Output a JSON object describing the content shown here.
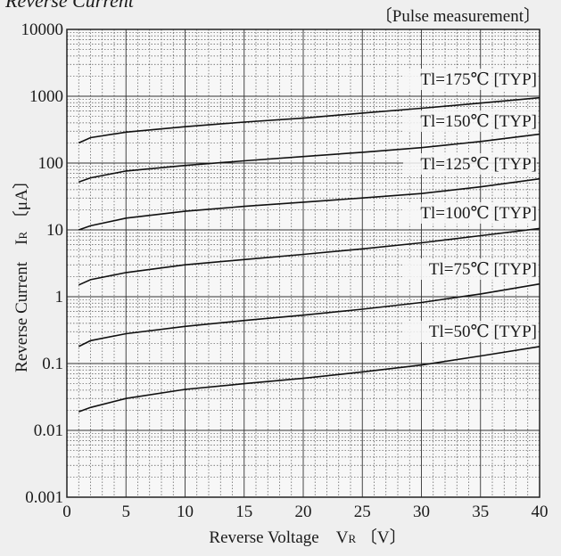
{
  "chart_data": {
    "type": "line",
    "title_fragment": "Reverse Current",
    "note": "〔Pulse measurement〕",
    "xlabel": "Reverse Voltage　V",
    "xlabel_sub": "R",
    "xlabel_unit": "〔V〕",
    "ylabel": "Reverse Current　I",
    "ylabel_sub": "R",
    "ylabel_unit": "〔μA〕",
    "x_scale": "linear",
    "y_scale": "log",
    "xlim": [
      0,
      40
    ],
    "ylim": [
      0.001,
      10000
    ],
    "x_ticks": [
      "0",
      "5",
      "10",
      "15",
      "20",
      "25",
      "30",
      "35",
      "40"
    ],
    "y_ticks": [
      "0.001",
      "0.01",
      "0.1",
      "1",
      "10",
      "100",
      "1000",
      "10000"
    ],
    "grid": true,
    "series": [
      {
        "name": "Tl=175℃ [TYP]",
        "x": [
          1,
          2,
          5,
          10,
          15,
          20,
          25,
          30,
          35,
          40
        ],
        "y": [
          200,
          240,
          290,
          350,
          410,
          470,
          560,
          660,
          790,
          950
        ]
      },
      {
        "name": "Tl=150℃ [TYP]",
        "x": [
          1,
          2,
          5,
          10,
          15,
          20,
          25,
          30,
          35,
          40
        ],
        "y": [
          52,
          60,
          76,
          92,
          108,
          125,
          145,
          170,
          210,
          270
        ]
      },
      {
        "name": "Tl=125℃ [TYP]",
        "x": [
          1,
          2,
          5,
          10,
          15,
          20,
          25,
          30,
          35,
          40
        ],
        "y": [
          10,
          11.5,
          15,
          19,
          22.5,
          26,
          30,
          35,
          44,
          58
        ]
      },
      {
        "name": "Tl=100℃ [TYP]",
        "x": [
          1,
          2,
          5,
          10,
          15,
          20,
          25,
          30,
          35,
          40
        ],
        "y": [
          1.5,
          1.8,
          2.3,
          3.0,
          3.6,
          4.3,
          5.2,
          6.4,
          8.2,
          10.5
        ]
      },
      {
        "name": "Tl=75℃ [TYP]",
        "x": [
          1,
          2,
          5,
          10,
          15,
          20,
          25,
          30,
          35,
          40
        ],
        "y": [
          0.18,
          0.22,
          0.28,
          0.36,
          0.44,
          0.53,
          0.65,
          0.82,
          1.1,
          1.55
        ]
      },
      {
        "name": "Tl=50℃ [TYP]",
        "x": [
          1,
          2,
          5,
          10,
          15,
          20,
          25,
          30,
          35,
          40
        ],
        "y": [
          0.019,
          0.022,
          0.03,
          0.041,
          0.05,
          0.06,
          0.075,
          0.095,
          0.13,
          0.18
        ]
      }
    ]
  }
}
